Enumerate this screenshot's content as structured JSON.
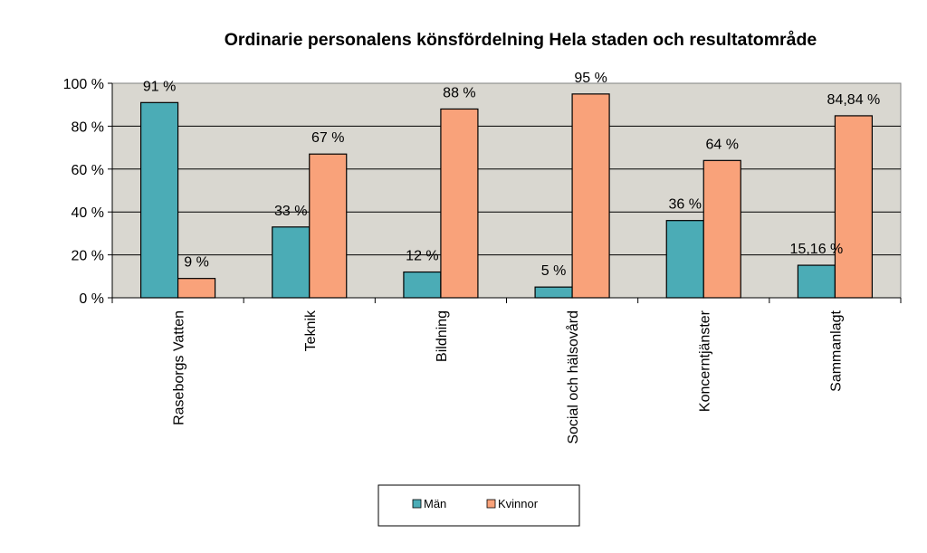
{
  "chart_data": {
    "type": "bar",
    "title": "Ordinarie personalens könsfördelning Hela staden och resultatområde",
    "categories": [
      "Raseborgs Vatten",
      "Teknik",
      "Bildning",
      "Social och hälsovård",
      "Koncerntjänster",
      "Sammanlagt"
    ],
    "series": [
      {
        "name": "Män",
        "values": [
          91,
          33,
          12,
          5,
          36,
          15.16
        ],
        "labels": [
          "91 %",
          "33 %",
          "12 %",
          "5 %",
          "36 %",
          "15,16 %"
        ],
        "color": "#4BACB6"
      },
      {
        "name": "Kvinnor",
        "values": [
          9,
          67,
          88,
          95,
          64,
          84.84
        ],
        "labels": [
          "9 %",
          "67 %",
          "88 %",
          "95 %",
          "64 %",
          "84,84 %"
        ],
        "color": "#F9A27A"
      }
    ],
    "ylim": [
      0,
      100
    ],
    "yticks": [
      "0 %",
      "20 %",
      "40 %",
      "60 %",
      "80 %",
      "100 %"
    ],
    "ytick_values": [
      0,
      20,
      40,
      60,
      80,
      100
    ],
    "grid": true,
    "plot_background": "#D9D7D0",
    "legend_position": "bottom"
  }
}
